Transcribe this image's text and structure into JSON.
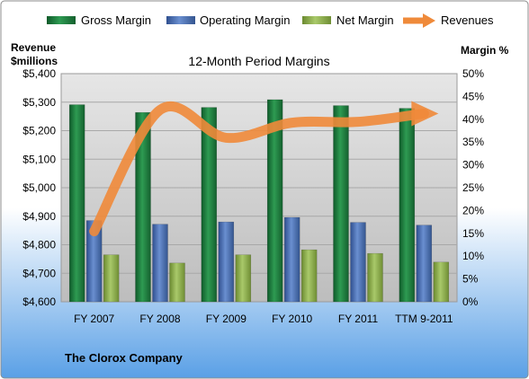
{
  "chart_data": {
    "type": "bar",
    "title": "12-Month Period Margins",
    "categories": [
      "FY 2007",
      "FY 2008",
      "FY 2009",
      "FY 2010",
      "FY 2011",
      "TTM 9-2011"
    ],
    "ylabel_left": [
      "Revenue",
      "$millions"
    ],
    "ylabel_right": "Margin %",
    "left_axis": {
      "min": 4600,
      "max": 5400,
      "ticks": [
        "$4,600",
        "$4,700",
        "$4,800",
        "$4,900",
        "$5,000",
        "$5,100",
        "$5,200",
        "$5,300",
        "$5,400"
      ]
    },
    "right_axis": {
      "min": 0,
      "max": 50,
      "ticks": [
        "0%",
        "5%",
        "10%",
        "15%",
        "20%",
        "25%",
        "30%",
        "35%",
        "40%",
        "45%",
        "50%"
      ]
    },
    "series": [
      {
        "name": "Gross Margin",
        "axis": "right",
        "color": "#1f7a3c",
        "values": [
          43.2,
          41.5,
          42.6,
          44.3,
          43.0,
          42.4
        ]
      },
      {
        "name": "Operating Margin",
        "axis": "right",
        "color": "#4a6eb5",
        "values": [
          17.8,
          17.0,
          17.5,
          18.5,
          17.4,
          16.8
        ]
      },
      {
        "name": "Net Margin",
        "axis": "right",
        "color": "#8db04a",
        "values": [
          10.3,
          8.5,
          10.3,
          11.4,
          10.6,
          8.7
        ]
      }
    ],
    "line_series": {
      "name": "Revenues",
      "axis": "left",
      "color": "#ef8a3a",
      "values": [
        4847,
        5273,
        5175,
        5228,
        5231,
        5260
      ]
    },
    "grid": true,
    "legend": "top"
  },
  "footer": {
    "company": "The Clorox Company"
  },
  "colors": {
    "plot_bg": "#c8c8c8",
    "bg_top": "#ffffff",
    "bg_bottom": "#5aa0e6"
  }
}
